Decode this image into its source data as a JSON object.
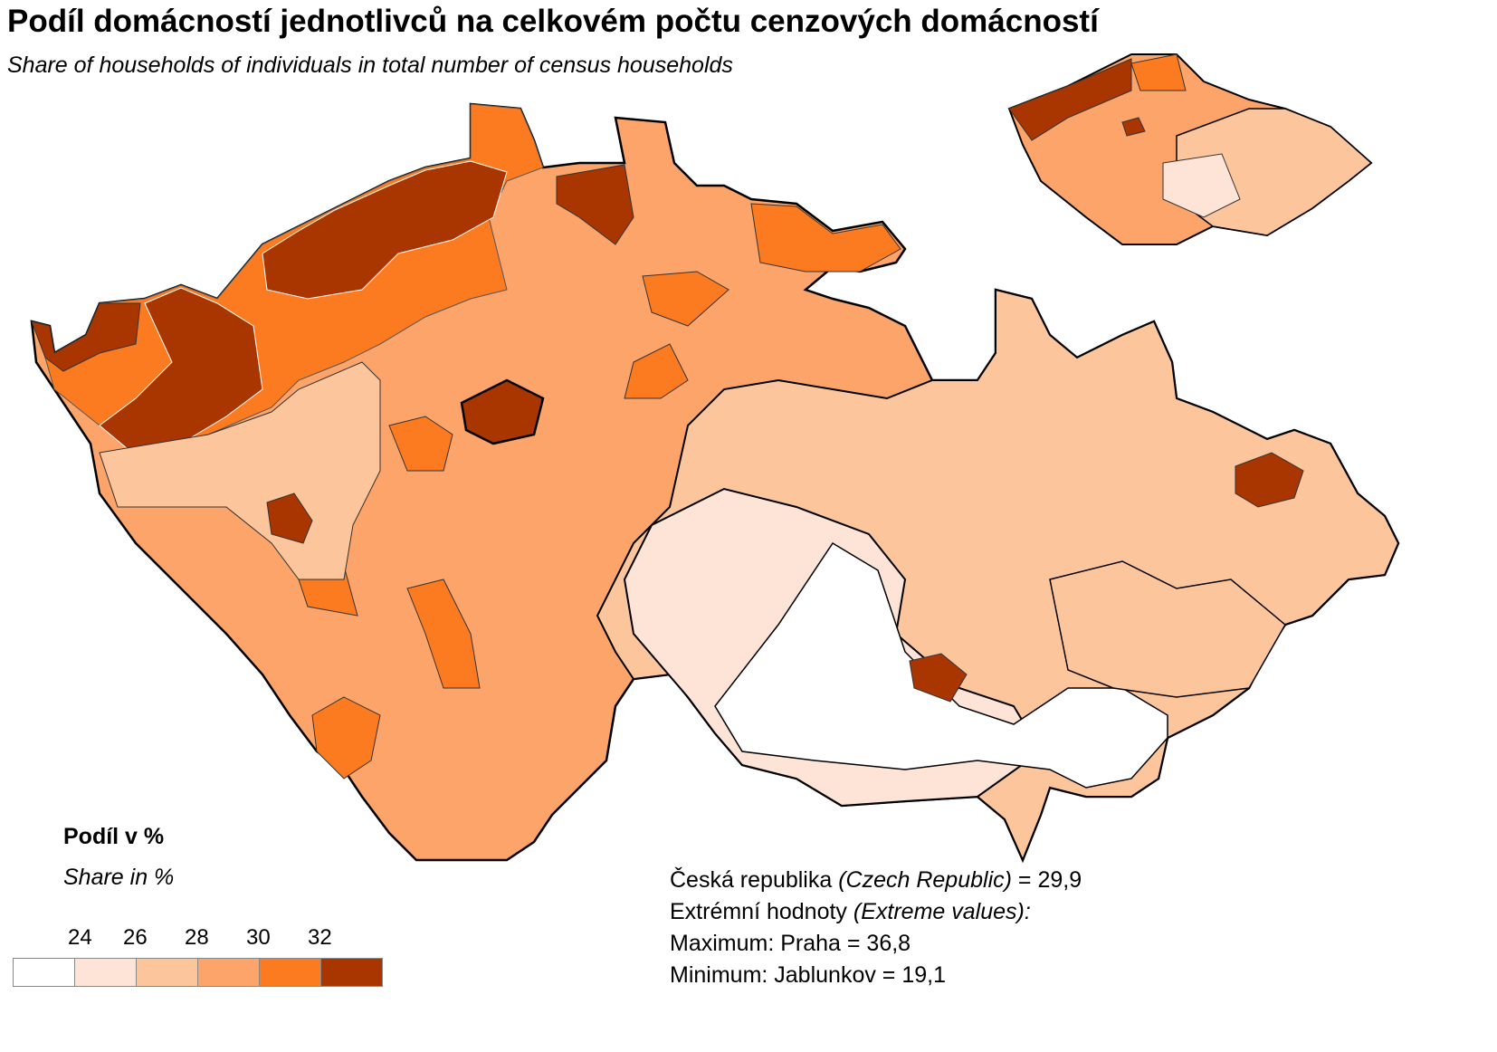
{
  "title": "Podíl domácností jednotlivců na celkovém počtu cenzových domácností",
  "subtitle": "Share of households of individuals in total number of census households",
  "legend": {
    "title": "Podíl v %",
    "subtitle": "Share in %",
    "ticks": [
      "24",
      "26",
      "28",
      "30",
      "32"
    ],
    "classes": [
      {
        "range": "< 24",
        "color": "#ffffff"
      },
      {
        "range": "24–26",
        "color": "#fee3d7"
      },
      {
        "range": "26–28",
        "color": "#fdc59c"
      },
      {
        "range": "28–30",
        "color": "#fca46a"
      },
      {
        "range": "30–32",
        "color": "#fc7b20"
      },
      {
        "range": "> 32",
        "color": "#a93600"
      }
    ]
  },
  "stats": {
    "country_label": "Česká republika",
    "country_label_en": "(Czech Republic)",
    "country_value": "= 29,9",
    "extremes_label": "Extrémní hodnoty",
    "extremes_label_en": "(Extreme values):",
    "maximum": "Maximum: Praha = 36,8",
    "minimum": "Minimum: Jablunkov = 19,1"
  }
}
